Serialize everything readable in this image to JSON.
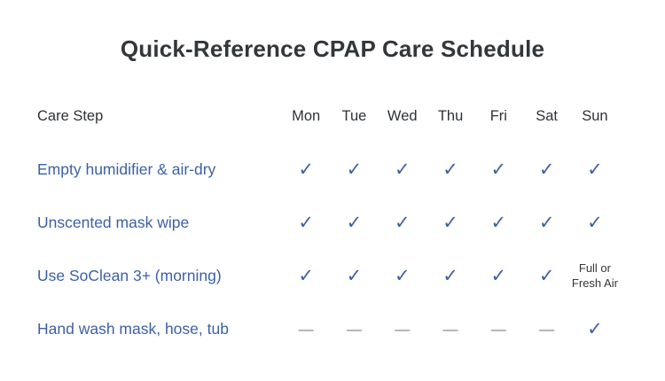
{
  "page": {
    "title": "Quick-Reference CPAP Care Schedule"
  },
  "colors": {
    "title": "#33373b",
    "header": "#2e3237",
    "row_label": "#3d61a6",
    "check": "#3d61a6",
    "dash": "#7d8087",
    "note": "#33373b"
  },
  "table": {
    "label_header": "Care Step",
    "day_headers": [
      "Mon",
      "Tue",
      "Wed",
      "Thu",
      "Fri",
      "Sat",
      "Sun"
    ],
    "glyphs": {
      "check": "✓",
      "dash": "—"
    },
    "rows": [
      {
        "label": "Empty humidifier & air-dry",
        "cells": [
          "check",
          "check",
          "check",
          "check",
          "check",
          "check",
          "check"
        ]
      },
      {
        "label": "Unscented mask wipe",
        "cells": [
          "check",
          "check",
          "check",
          "check",
          "check",
          "check",
          "check"
        ]
      },
      {
        "label": "Use SoClean 3+ (morning)",
        "cells": [
          "check",
          "check",
          "check",
          "check",
          "check",
          "check",
          {
            "type": "text",
            "text": "Full or Fresh Air"
          }
        ]
      },
      {
        "label": "Hand wash mask, hose, tub",
        "cells": [
          "dash",
          "dash",
          "dash",
          "dash",
          "dash",
          "dash",
          "check"
        ]
      }
    ]
  }
}
